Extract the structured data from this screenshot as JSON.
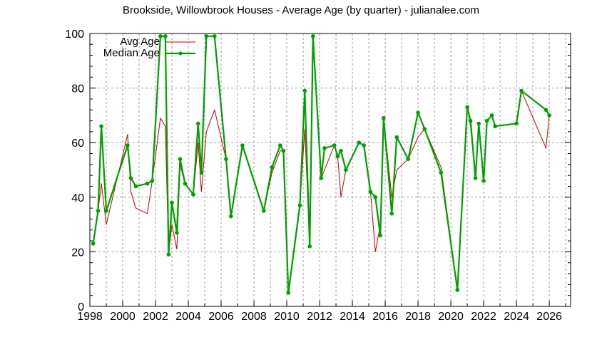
{
  "title": "Brookside, Willowbrook Houses - Average Age (by quarter) - julianalee.com",
  "chart_data": {
    "type": "line",
    "title": "Brookside, Willowbrook Houses - Average Age (by quarter) - julianalee.com",
    "xlabel": "",
    "ylabel": "",
    "xlim": [
      1998,
      2027.3
    ],
    "ylim": [
      0,
      100
    ],
    "x_ticks": [
      1998,
      2000,
      2002,
      2004,
      2006,
      2008,
      2010,
      2012,
      2014,
      2016,
      2018,
      2020,
      2022,
      2024,
      2026
    ],
    "y_ticks": [
      0,
      20,
      40,
      60,
      80,
      100
    ],
    "grid": true,
    "legend_position": "top-left",
    "series": [
      {
        "name": "Avg Age",
        "color": "#cc0000",
        "marker": false,
        "x": [
          1998.2,
          1998.5,
          1998.7,
          1999.0,
          2000.3,
          2000.5,
          2000.8,
          2001.5,
          2001.8,
          2002.3,
          2002.6,
          2002.8,
          2003.0,
          2003.3,
          2003.5,
          2003.8,
          2004.3,
          2004.6,
          2004.8,
          2005.1,
          2005.6,
          2006.3,
          2006.6,
          2007.3,
          2008.6,
          2009.1,
          2009.6,
          2009.8,
          2010.1,
          2010.8,
          2011.1,
          2011.4,
          2011.6,
          2012.1,
          2012.3,
          2012.9,
          2013.1,
          2013.3,
          2013.6,
          2014.4,
          2014.7,
          2015.1,
          2015.4,
          2015.7,
          2015.9,
          2016.4,
          2016.7,
          2017.4,
          2018.0,
          2018.4,
          2019.4,
          2020.4,
          2021.0,
          2021.2,
          2021.5,
          2021.7,
          2022.0,
          2022.2,
          2022.5,
          2022.7,
          2024.0,
          2024.3,
          2025.8,
          2026.0
        ],
        "values": [
          23,
          35,
          45,
          30,
          63,
          42,
          36,
          34,
          46,
          69,
          66,
          19,
          30,
          21,
          52,
          45,
          41,
          60,
          42,
          64,
          72,
          54,
          33,
          59,
          35,
          49,
          57,
          57,
          5,
          37,
          65,
          22,
          99,
          47,
          50,
          59,
          55,
          40,
          50,
          60,
          59,
          42,
          20,
          30,
          69,
          40,
          50,
          54,
          62,
          65,
          51,
          6,
          73,
          66,
          47,
          67,
          46,
          68,
          70,
          66,
          67,
          79,
          58,
          70
        ]
      },
      {
        "name": "Median Age",
        "color": "#00a000",
        "marker": true,
        "x": [
          1998.2,
          1998.5,
          1998.7,
          1999.0,
          2000.3,
          2000.5,
          2000.8,
          2001.5,
          2001.8,
          2002.3,
          2002.6,
          2002.8,
          2003.0,
          2003.3,
          2003.5,
          2003.8,
          2004.3,
          2004.6,
          2004.8,
          2005.1,
          2005.6,
          2006.3,
          2006.6,
          2007.3,
          2008.6,
          2009.1,
          2009.6,
          2009.8,
          2010.1,
          2010.8,
          2011.1,
          2011.4,
          2011.6,
          2012.1,
          2012.3,
          2012.9,
          2013.1,
          2013.3,
          2013.6,
          2014.4,
          2014.7,
          2015.1,
          2015.4,
          2015.7,
          2015.9,
          2016.4,
          2016.7,
          2017.4,
          2018.0,
          2018.4,
          2019.4,
          2020.4,
          2021.0,
          2021.2,
          2021.5,
          2021.7,
          2022.0,
          2022.2,
          2022.5,
          2022.7,
          2024.0,
          2024.3,
          2025.8,
          2026.0
        ],
        "values": [
          23,
          35,
          66,
          35,
          59,
          47,
          44,
          45,
          46,
          99,
          99,
          19,
          38,
          27,
          54,
          45,
          41,
          67,
          49,
          99,
          99,
          54,
          33,
          59,
          35,
          51,
          59,
          57,
          5,
          37,
          79,
          22,
          99,
          47,
          58,
          59,
          55,
          57,
          50,
          60,
          59,
          42,
          40,
          26,
          69,
          34,
          62,
          54,
          71,
          65,
          49,
          6,
          73,
          68,
          47,
          67,
          46,
          68,
          70,
          66,
          67,
          79,
          72,
          70
        ]
      }
    ]
  },
  "legend": {
    "items": [
      {
        "label": "Avg Age",
        "color": "#cc0000"
      },
      {
        "label": "Median Age",
        "color": "#00a000"
      }
    ]
  }
}
